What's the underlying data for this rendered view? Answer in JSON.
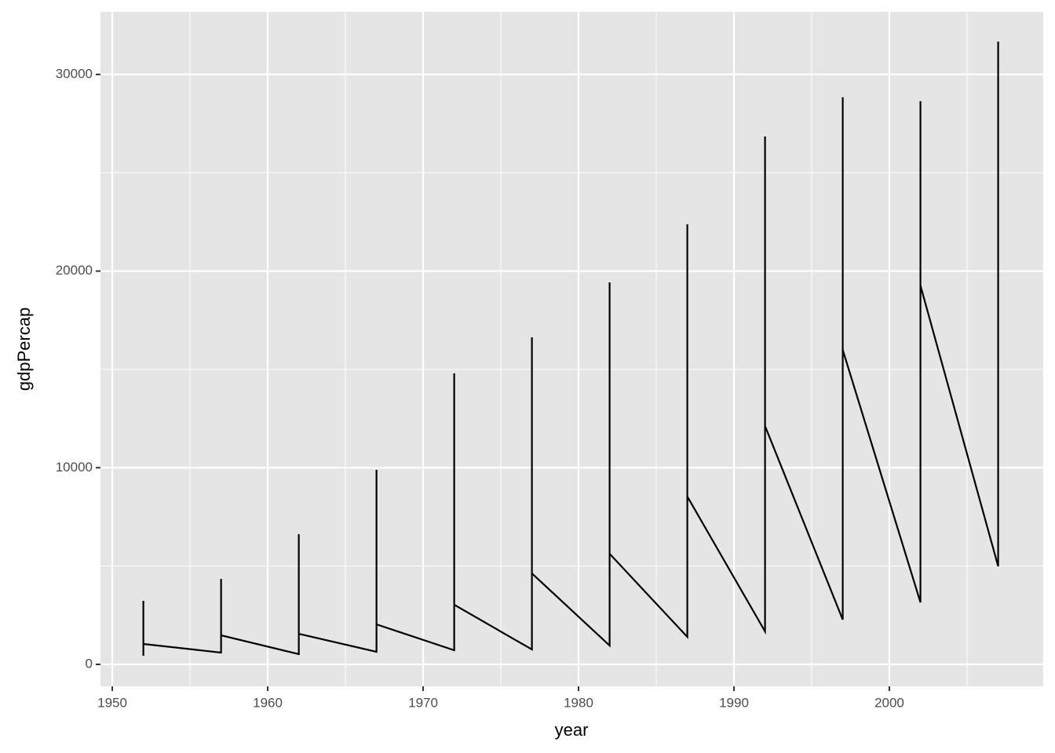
{
  "chart_data": {
    "type": "line",
    "x_label": "year",
    "y_label": "gdpPercap",
    "x": [
      1952,
      1952,
      1952,
      1957,
      1957,
      1957,
      1962,
      1962,
      1962,
      1967,
      1967,
      1967,
      1972,
      1972,
      1972,
      1977,
      1977,
      1977,
      1982,
      1982,
      1982,
      1987,
      1987,
      1987,
      1992,
      1992,
      1992,
      1997,
      1997,
      1997,
      2002,
      2002,
      2002,
      2007,
      2007
    ],
    "values": [
      439,
      3231,
      1037,
      598,
      4348,
      1476,
      519,
      6621,
      1556,
      638,
      9892,
      2034,
      718,
      14799,
      3031,
      758,
      16633,
      4627,
      957,
      19425,
      5624,
      1396,
      22377,
      8536,
      1675,
      26845,
      12126,
      2274,
      28839,
      15995,
      3151,
      28640,
      19266,
      4986,
      31671
    ],
    "color": "#000000",
    "xlim": [
      1949.24,
      2009.9
    ],
    "ylim": [
      -1117,
      33187
    ],
    "xticks": [
      1950,
      1960,
      1970,
      1980,
      1990,
      2000
    ],
    "yticks": [
      0,
      10000,
      20000,
      30000
    ],
    "grid": true
  }
}
